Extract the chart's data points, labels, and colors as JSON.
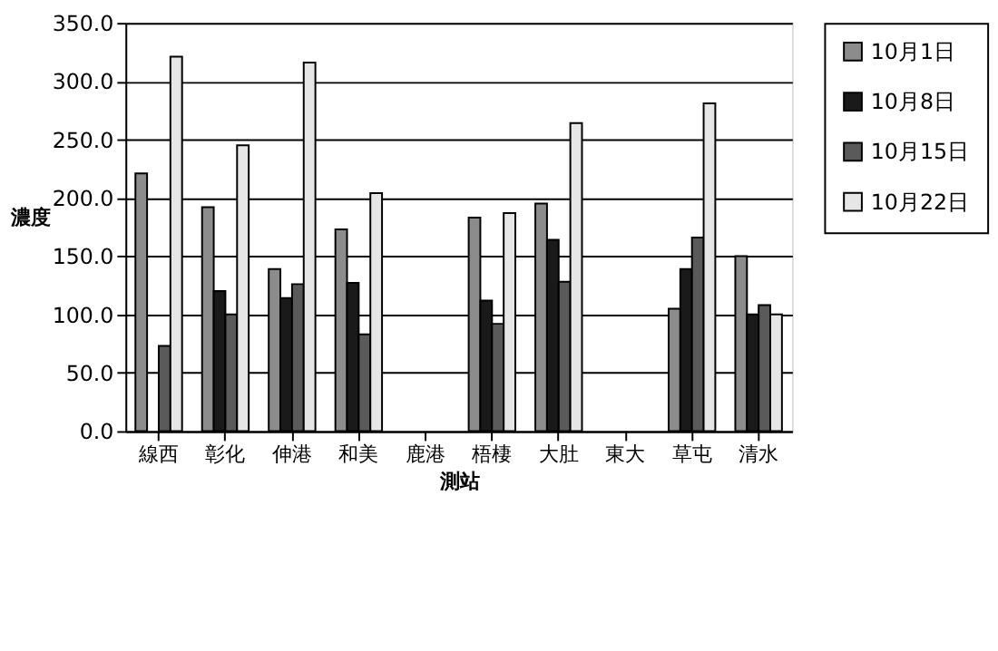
{
  "chart_data": {
    "type": "bar",
    "xlabel": "測站",
    "ylabel": "濃度",
    "categories": [
      "線西",
      "彰化",
      "伸港",
      "和美",
      "鹿港",
      "梧棲",
      "大肚",
      "東大",
      "草屯",
      "清水"
    ],
    "series": [
      {
        "name": "10月1日",
        "color": "#8c8c8c",
        "values": [
          221,
          192,
          139,
          173,
          null,
          183,
          195,
          null,
          105,
          150
        ]
      },
      {
        "name": "10月8日",
        "color": "#1a1a1a",
        "values": [
          null,
          120,
          114,
          127,
          null,
          112,
          164,
          null,
          139,
          100
        ]
      },
      {
        "name": "10月15日",
        "color": "#5a5a5a",
        "values": [
          73,
          100,
          126,
          83,
          null,
          92,
          128,
          null,
          166,
          108
        ]
      },
      {
        "name": "10月22日",
        "color": "#e6e6e6",
        "values": [
          321,
          245,
          316,
          204,
          null,
          187,
          264,
          null,
          281,
          100
        ]
      }
    ],
    "ylim": [
      0,
      350
    ],
    "yticks": [
      {
        "value": 0,
        "label": "0.0"
      },
      {
        "value": 50,
        "label": "50.0"
      },
      {
        "value": 100,
        "label": "100.0"
      },
      {
        "value": 150,
        "label": "150.0"
      },
      {
        "value": 200,
        "label": "200.0"
      },
      {
        "value": 250,
        "label": "250.0"
      },
      {
        "value": 300,
        "label": "300.0"
      },
      {
        "value": 350,
        "label": "350.0"
      }
    ],
    "grid": "y",
    "legend": "top right"
  }
}
